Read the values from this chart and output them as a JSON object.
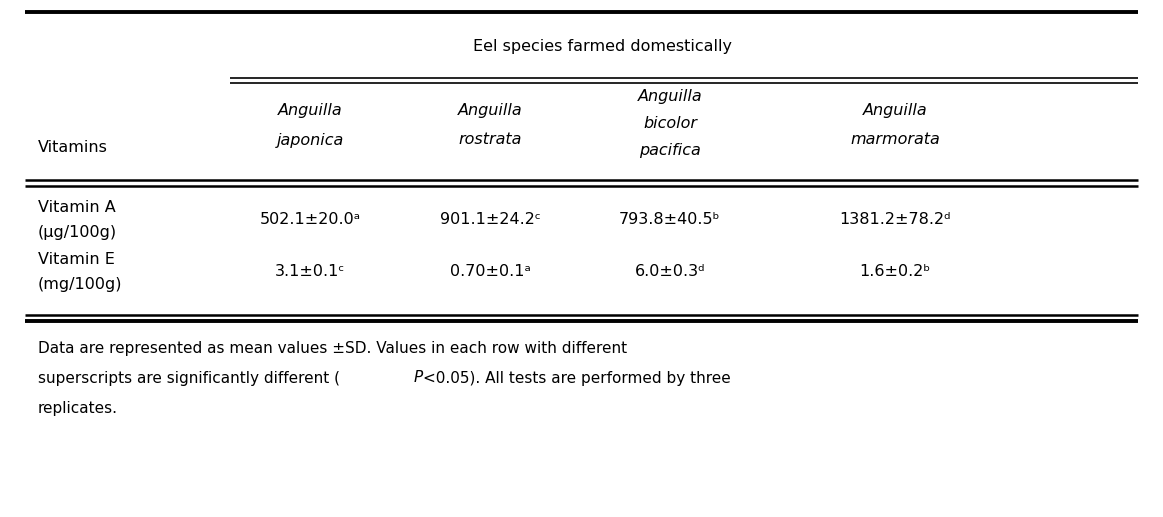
{
  "title": "Eel species farmed domestically",
  "vitamins_label": "Vitamins",
  "col1_line1": "Anguilla",
  "col1_line2": "japonica",
  "col2_line1": "Anguilla",
  "col2_line2": "rostrata",
  "col3_line1": "Anguilla",
  "col3_line2": "bicolor",
  "col3_line3": "pacifica",
  "col4_line1": "Anguilla",
  "col4_line2": "marmorata",
  "vitA_label1": "Vitamin A",
  "vitA_label2": "μg/100g",
  "vitE_label1": "Vitamin E",
  "vitE_label2": "mg/100g",
  "vitA_data": [
    "502.1±20.0ᵃ",
    "901.1±24.2ᶜ",
    "793.8±40.5ᵇ",
    "1381.2±78.2ᵈ"
  ],
  "vitE_data": [
    "3.1±0.1ᶜ",
    "0.70±0.1ᵃ",
    "6.0±0.3ᵈ",
    "1.6±0.2ᵇ"
  ],
  "fn1": "Data are represented as mean values ±SD. Values in each row with different",
  "fn2a": "superscripts are significantly different (",
  "fn2b": "P",
  "fn2c": "<0.05). All tests are performed by three",
  "fn3": "replicates.",
  "bg_color": "#ffffff",
  "text_color": "#000000",
  "table_font_size": 11.5,
  "footnote_font_size": 11.0
}
